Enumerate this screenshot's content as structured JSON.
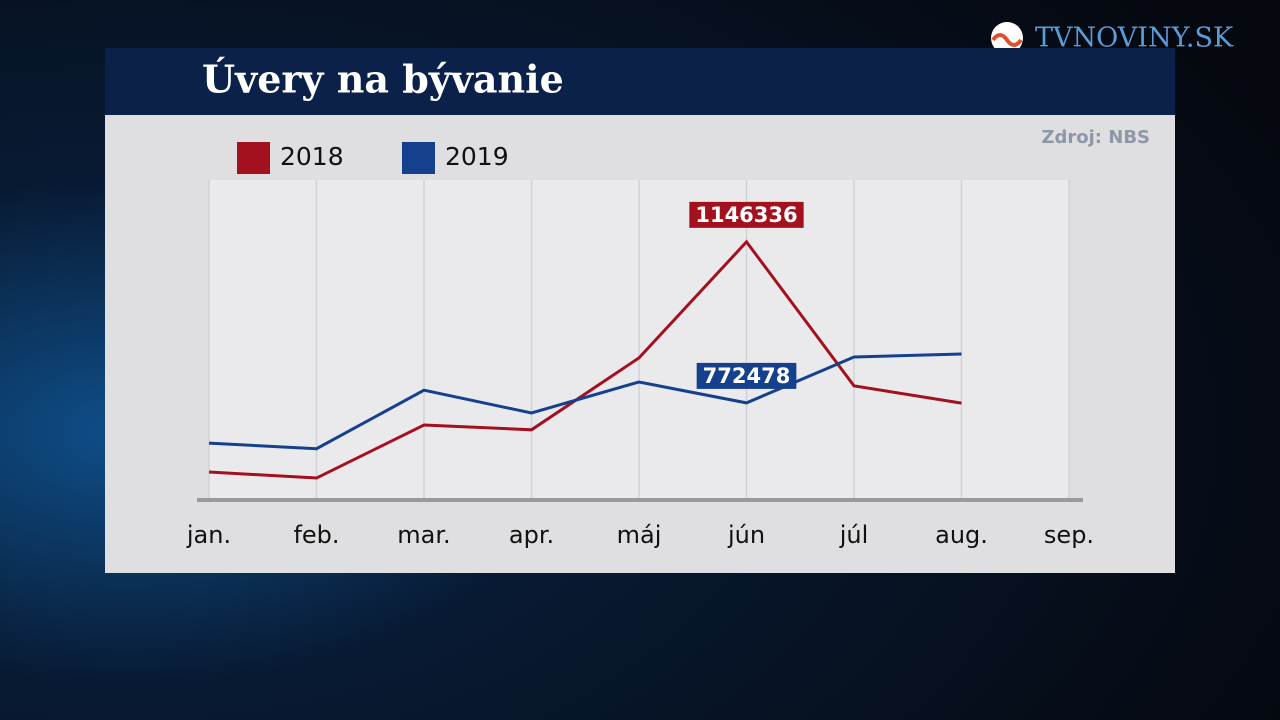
{
  "brand": "TVNOVINY.SK",
  "chart_data": {
    "type": "line",
    "title": "Úvery na bývanie",
    "source": "Zdroj: NBS",
    "categories": [
      "jan.",
      "feb.",
      "mar.",
      "apr.",
      "máj",
      "jún",
      "júl",
      "aug.",
      "sep."
    ],
    "series": [
      {
        "name": "2018",
        "color": "#a3101e",
        "values": [
          612000,
          598000,
          721000,
          710000,
          877000,
          1146336,
          812000,
          772000,
          null
        ],
        "labeled": [
          5
        ]
      },
      {
        "name": "2019",
        "color": "#14408e",
        "values": [
          679000,
          666000,
          802000,
          749000,
          821000,
          772478,
          879000,
          886000,
          null
        ],
        "labeled": [
          5
        ]
      }
    ],
    "ylim": [
      547000,
      1290000
    ],
    "grid": true,
    "legend": "top-left"
  }
}
